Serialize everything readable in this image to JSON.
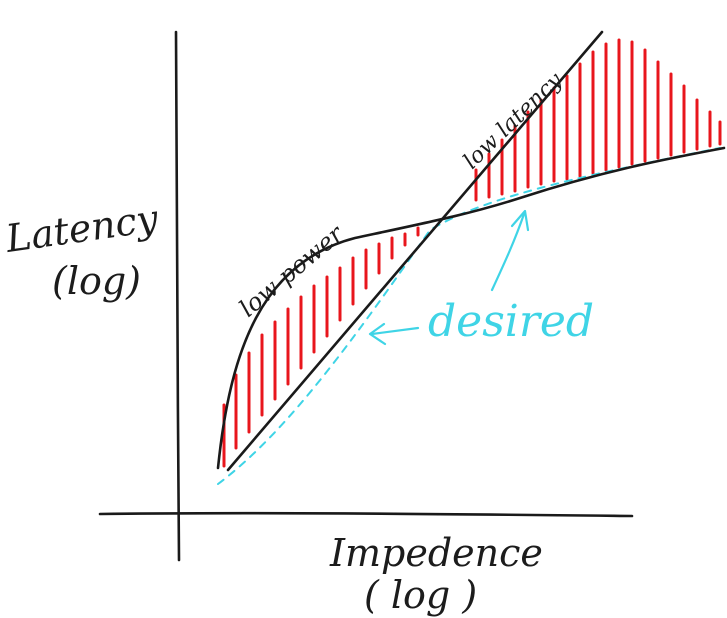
{
  "y_axis_label": {
    "line1": "Latency",
    "line2": "(log)"
  },
  "x_axis_label": {
    "line1": "Impedence",
    "line2": "( log )"
  },
  "curve_labels": {
    "low_power": "low power",
    "low_latency": "low latency",
    "desired": "desired"
  },
  "colors": {
    "ink": "#1a1a1a",
    "hatch": "#e8161c",
    "desired": "#3fd4e6"
  }
}
